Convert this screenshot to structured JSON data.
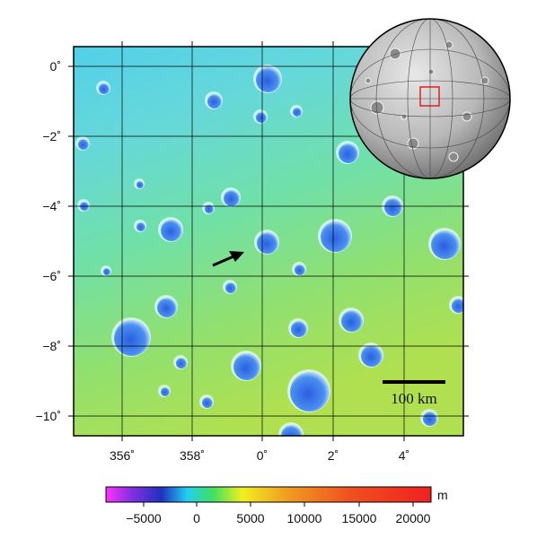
{
  "map": {
    "lat_labels": [
      "0˚",
      "−2˚",
      "−4˚",
      "−6˚",
      "−8˚",
      "−10˚"
    ],
    "lon_labels": [
      "356˚",
      "358˚",
      "0˚",
      "2˚",
      "4˚"
    ],
    "scale_bar_label": "100 km",
    "colorbar_unit": "m",
    "colorbar_ticks": [
      "−5000",
      "0",
      "5000",
      "10000",
      "15000",
      "20000"
    ],
    "colors": {
      "lowlands": "#3a7fe0",
      "plains": "#6fe0a8",
      "highlands": "#a8e060",
      "frame": "#000000",
      "locator_box": "#e02020"
    }
  }
}
